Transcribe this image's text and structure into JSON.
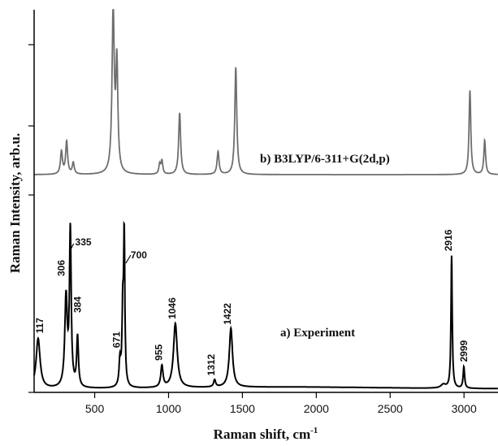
{
  "chart_data": {
    "type": "line",
    "xlabel": "Raman shift, cm",
    "xlabel_superscript": "-1",
    "ylabel": "Raman Intensity, arb.u.",
    "xlim": [
      90,
      3230
    ],
    "x_ticks": [
      500,
      1000,
      1500,
      2000,
      2500,
      3000
    ],
    "grid": false,
    "series": [
      {
        "name": "b) B3LYP/6-311+G(2d,p)",
        "color": "#6e6e6e",
        "baseline": 0,
        "peaks": [
          {
            "x": 275,
            "height": 0.14,
            "width": 8
          },
          {
            "x": 310,
            "height": 0.2,
            "width": 8
          },
          {
            "x": 355,
            "height": 0.07,
            "width": 8
          },
          {
            "x": 625,
            "height": 1.0,
            "width": 9
          },
          {
            "x": 650,
            "height": 0.66,
            "width": 8
          },
          {
            "x": 940,
            "height": 0.06,
            "width": 7
          },
          {
            "x": 955,
            "height": 0.08,
            "width": 7
          },
          {
            "x": 1075,
            "height": 0.38,
            "width": 8
          },
          {
            "x": 1335,
            "height": 0.14,
            "width": 8
          },
          {
            "x": 1455,
            "height": 0.66,
            "width": 8
          },
          {
            "x": 3040,
            "height": 0.52,
            "width": 7
          },
          {
            "x": 3140,
            "height": 0.21,
            "width": 7
          }
        ]
      },
      {
        "name": "a) Experiment",
        "color": "#000000",
        "baseline": 0.02,
        "peaks": [
          {
            "x": 117,
            "height": 0.28,
            "width": 16
          },
          {
            "x": 306,
            "height": 0.5,
            "width": 10
          },
          {
            "x": 335,
            "height": 0.87,
            "width": 7
          },
          {
            "x": 384,
            "height": 0.28,
            "width": 7
          },
          {
            "x": 671,
            "height": 0.14,
            "width": 7
          },
          {
            "x": 690,
            "height": 0.4,
            "width": 6
          },
          {
            "x": 700,
            "height": 0.82,
            "width": 5
          },
          {
            "x": 955,
            "height": 0.12,
            "width": 9
          },
          {
            "x": 1046,
            "height": 0.36,
            "width": 15
          },
          {
            "x": 1312,
            "height": 0.04,
            "width": 8
          },
          {
            "x": 1422,
            "height": 0.33,
            "width": 13
          },
          {
            "x": 2860,
            "height": 0.02,
            "width": 20
          },
          {
            "x": 2916,
            "height": 0.74,
            "width": 5
          },
          {
            "x": 2999,
            "height": 0.12,
            "width": 6
          }
        ],
        "annotations": [
          {
            "x": 117,
            "text": "117"
          },
          {
            "x": 306,
            "text": "306"
          },
          {
            "x": 335,
            "text": "335"
          },
          {
            "x": 384,
            "text": "384"
          },
          {
            "x": 671,
            "text": "671"
          },
          {
            "x": 700,
            "text": "700"
          },
          {
            "x": 955,
            "text": "955"
          },
          {
            "x": 1046,
            "text": "1046"
          },
          {
            "x": 1312,
            "text": "1312"
          },
          {
            "x": 1422,
            "text": "1422"
          },
          {
            "x": 2916,
            "text": "2916"
          },
          {
            "x": 2999,
            "text": "2999"
          }
        ]
      }
    ]
  }
}
